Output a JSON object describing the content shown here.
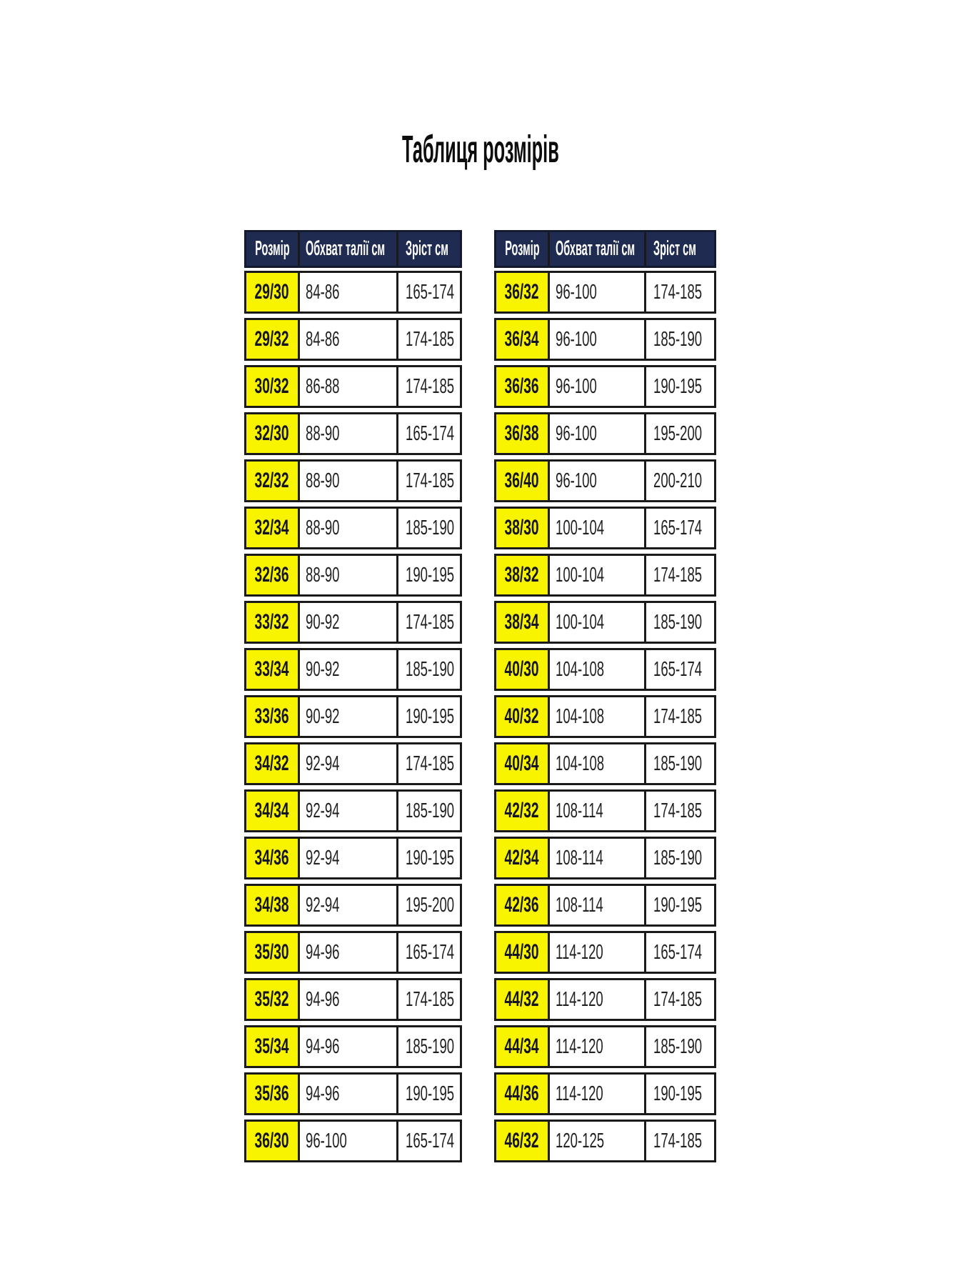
{
  "title": "Таблиця розмірів",
  "colors": {
    "page_bg": "#ffffff",
    "title_text": "#0d0d0d",
    "header_bg": "#1f2b50",
    "header_text": "#ffffff",
    "size_cell_bg": "#f8f400",
    "size_cell_text": "#141423",
    "data_text": "#212121",
    "border": "#1a1a1a"
  },
  "chart_data": [
    {
      "type": "table",
      "title": "Таблиця розмірів",
      "columns": [
        "Розмір",
        "Обхват талії см",
        "Зріст см"
      ],
      "rows": [
        [
          "29/30",
          "84-86",
          "165-174"
        ],
        [
          "29/32",
          "84-86",
          "174-185"
        ],
        [
          "30/32",
          "86-88",
          "174-185"
        ],
        [
          "32/30",
          "88-90",
          "165-174"
        ],
        [
          "32/32",
          "88-90",
          "174-185"
        ],
        [
          "32/34",
          "88-90",
          "185-190"
        ],
        [
          "32/36",
          "88-90",
          "190-195"
        ],
        [
          "33/32",
          "90-92",
          "174-185"
        ],
        [
          "33/34",
          "90-92",
          "185-190"
        ],
        [
          "33/36",
          "90-92",
          "190-195"
        ],
        [
          "34/32",
          "92-94",
          "174-185"
        ],
        [
          "34/34",
          "92-94",
          "185-190"
        ],
        [
          "34/36",
          "92-94",
          "190-195"
        ],
        [
          "34/38",
          "92-94",
          "195-200"
        ],
        [
          "35/30",
          "94-96",
          "165-174"
        ],
        [
          "35/32",
          "94-96",
          "174-185"
        ],
        [
          "35/34",
          "94-96",
          "185-190"
        ],
        [
          "35/36",
          "94-96",
          "190-195"
        ],
        [
          "36/30",
          "96-100",
          "165-174"
        ]
      ]
    },
    {
      "type": "table",
      "columns": [
        "Розмір",
        "Обхват талії см",
        "Зріст см"
      ],
      "rows": [
        [
          "36/32",
          "96-100",
          "174-185"
        ],
        [
          "36/34",
          "96-100",
          "185-190"
        ],
        [
          "36/36",
          "96-100",
          "190-195"
        ],
        [
          "36/38",
          "96-100",
          "195-200"
        ],
        [
          "36/40",
          "96-100",
          "200-210"
        ],
        [
          "38/30",
          "100-104",
          "165-174"
        ],
        [
          "38/32",
          "100-104",
          "174-185"
        ],
        [
          "38/34",
          "100-104",
          "185-190"
        ],
        [
          "40/30",
          "104-108",
          "165-174"
        ],
        [
          "40/32",
          "104-108",
          "174-185"
        ],
        [
          "40/34",
          "104-108",
          "185-190"
        ],
        [
          "42/32",
          "108-114",
          "174-185"
        ],
        [
          "42/34",
          "108-114",
          "185-190"
        ],
        [
          "42/36",
          "108-114",
          "190-195"
        ],
        [
          "44/30",
          "114-120",
          "165-174"
        ],
        [
          "44/32",
          "114-120",
          "174-185"
        ],
        [
          "44/34",
          "114-120",
          "185-190"
        ],
        [
          "44/36",
          "114-120",
          "190-195"
        ],
        [
          "46/32",
          "120-125",
          "174-185"
        ]
      ]
    }
  ]
}
